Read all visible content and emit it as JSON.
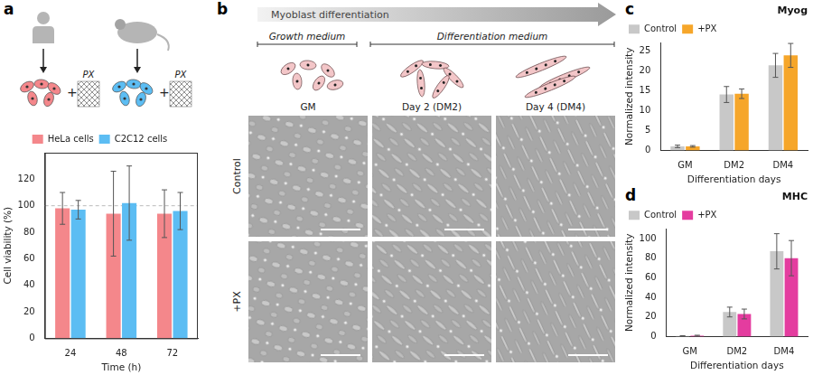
{
  "figure": {
    "panel_labels": [
      "a",
      "b",
      "c",
      "d"
    ],
    "a": {
      "combine": "+",
      "mixture_label": "PX"
    },
    "b": {
      "arrow_label": "Myoblast differentiation",
      "phases": [
        "Growth medium",
        "Differentiation medium"
      ],
      "columns": [
        "GM",
        "Day 2 (DM2)",
        "Day 4 (DM4)"
      ],
      "rows": [
        "Control",
        "+PX"
      ]
    }
  },
  "chart_data": [
    {
      "type": "bar",
      "x_label": "Time (h)",
      "y_label": "Cell viability (%)",
      "categories": [
        "24",
        "48",
        "72"
      ],
      "series": [
        {
          "name": "HeLa cells",
          "color": "#f4878b",
          "values": [
            98,
            94,
            94
          ],
          "errors": [
            12,
            32,
            18
          ]
        },
        {
          "name": "C2C12 cells",
          "color": "#5cbdf3",
          "values": [
            97,
            102,
            96
          ],
          "errors": [
            7,
            28,
            14
          ]
        }
      ],
      "ylim": [
        0,
        140
      ],
      "yticks": [
        0,
        20,
        40,
        60,
        80,
        100,
        120
      ],
      "reference_line": 100,
      "legend": "top",
      "grid": false
    },
    {
      "type": "bar",
      "title": "Myog",
      "x_label": "Differentiation days",
      "y_label": "Normalized intensity",
      "categories": [
        "GM",
        "DM2",
        "DM4"
      ],
      "series": [
        {
          "name": "Control",
          "color": "#c8c8c8",
          "values": [
            1,
            14,
            21.3
          ],
          "errors": [
            0.3,
            2,
            3
          ]
        },
        {
          "name": "+PX",
          "color": "#f6a62a",
          "values": [
            1,
            14.2,
            23.8
          ],
          "errors": [
            0.2,
            1.2,
            3
          ]
        }
      ],
      "ylim": [
        0,
        27
      ],
      "yticks": [
        0,
        5,
        10,
        15,
        20,
        25
      ],
      "legend": "top-left",
      "grid": false
    },
    {
      "type": "bar",
      "title": "MHC",
      "x_label": "Differentiation days",
      "y_label": "Normalized intensity",
      "categories": [
        "GM",
        "DM2",
        "DM4"
      ],
      "series": [
        {
          "name": "Control",
          "color": "#c8c8c8",
          "values": [
            0.5,
            25,
            87
          ],
          "errors": [
            0.3,
            5,
            18
          ]
        },
        {
          "name": "+PX",
          "color": "#e43c9f",
          "values": [
            0.8,
            23,
            80
          ],
          "errors": [
            0.5,
            5,
            18
          ]
        }
      ],
      "ylim": [
        0,
        110
      ],
      "yticks": [
        0,
        20,
        40,
        60,
        80,
        100
      ],
      "legend": "top-left",
      "grid": false
    }
  ]
}
